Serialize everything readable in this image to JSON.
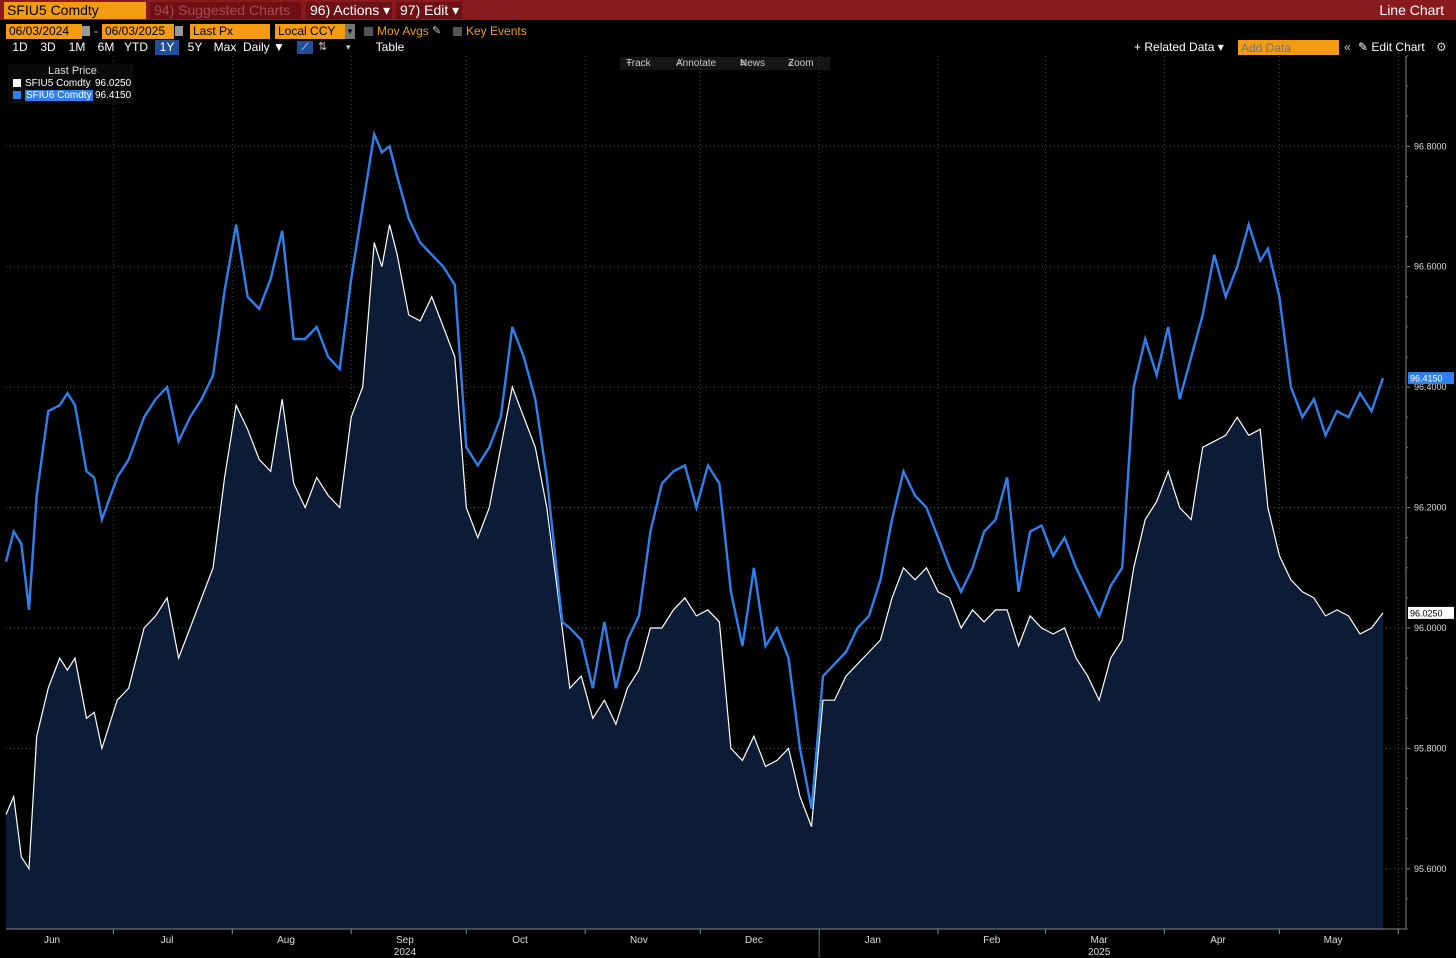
{
  "header": {
    "ticker": "SFIU5 Comdty",
    "suggested": "94) Suggested Charts",
    "actions": "96) Actions",
    "edit": "97) Edit",
    "title": "Line Chart"
  },
  "controls": {
    "start_date": "06/03/2024",
    "end_date": "06/03/2025",
    "field": "Last Px",
    "currency": "Local CCY",
    "mov_avgs": "Mov Avgs",
    "key_events": "Key Events",
    "ranges": [
      "1D",
      "3D",
      "1M",
      "6M",
      "YTD",
      "1Y",
      "5Y",
      "Max"
    ],
    "active_range": "1Y",
    "frequency": "Daily",
    "table": "Table",
    "related_data": "Related Data",
    "add_data_placeholder": "Add Data",
    "edit_chart": "Edit Chart"
  },
  "chart_tools": {
    "track": "Track",
    "annotate": "Annotate",
    "news": "News",
    "zoom": "Zoom"
  },
  "colors": {
    "series1": "#ffffff",
    "series2": "#2f80ed",
    "area": "#0c1c36",
    "accent": "#f39c12",
    "header": "#8b1a1f"
  },
  "chart_data": {
    "type": "line",
    "legend_title": "Last Price",
    "legend_position": "top-left",
    "grid": true,
    "ylim": [
      95.5,
      96.95
    ],
    "yticks": [
      "95.6000",
      "95.8000",
      "96.0000",
      "96.2000",
      "96.4000",
      "96.6000",
      "96.8000"
    ],
    "x_range": [
      "2024-06-03",
      "2025-06-03"
    ],
    "month_labels": [
      {
        "label": "Jun",
        "date": "2024-06-15"
      },
      {
        "label": "Jul",
        "date": "2024-07-15"
      },
      {
        "label": "Aug",
        "date": "2024-08-15"
      },
      {
        "label": "Sep",
        "date": "2024-09-15"
      },
      {
        "label": "Oct",
        "date": "2024-10-15"
      },
      {
        "label": "Nov",
        "date": "2024-11-15"
      },
      {
        "label": "Dec",
        "date": "2024-12-15"
      },
      {
        "label": "Jan",
        "date": "2025-01-15"
      },
      {
        "label": "Feb",
        "date": "2025-02-15"
      },
      {
        "label": "Mar",
        "date": "2025-03-15"
      },
      {
        "label": "Apr",
        "date": "2025-04-15"
      },
      {
        "label": "May",
        "date": "2025-05-15"
      }
    ],
    "year_labels": [
      {
        "label": "2024",
        "date": "2024-09-15"
      },
      {
        "label": "2025",
        "date": "2025-03-15"
      }
    ],
    "series": [
      {
        "name": "SFIU5 Comdty",
        "last": "96.0250",
        "filled": true,
        "points": [
          [
            "2024-06-03",
            95.69
          ],
          [
            "2024-06-05",
            95.72
          ],
          [
            "2024-06-07",
            95.62
          ],
          [
            "2024-06-09",
            95.6
          ],
          [
            "2024-06-11",
            95.82
          ],
          [
            "2024-06-14",
            95.9
          ],
          [
            "2024-06-17",
            95.95
          ],
          [
            "2024-06-19",
            95.93
          ],
          [
            "2024-06-21",
            95.95
          ],
          [
            "2024-06-24",
            95.85
          ],
          [
            "2024-06-26",
            95.86
          ],
          [
            "2024-06-28",
            95.8
          ],
          [
            "2024-07-02",
            95.88
          ],
          [
            "2024-07-05",
            95.9
          ],
          [
            "2024-07-09",
            96.0
          ],
          [
            "2024-07-12",
            96.02
          ],
          [
            "2024-07-15",
            96.05
          ],
          [
            "2024-07-18",
            95.95
          ],
          [
            "2024-07-21",
            96.0
          ],
          [
            "2024-07-24",
            96.05
          ],
          [
            "2024-07-27",
            96.1
          ],
          [
            "2024-07-30",
            96.25
          ],
          [
            "2024-08-02",
            96.37
          ],
          [
            "2024-08-05",
            96.33
          ],
          [
            "2024-08-08",
            96.28
          ],
          [
            "2024-08-11",
            96.26
          ],
          [
            "2024-08-14",
            96.38
          ],
          [
            "2024-08-17",
            96.24
          ],
          [
            "2024-08-20",
            96.2
          ],
          [
            "2024-08-23",
            96.25
          ],
          [
            "2024-08-26",
            96.22
          ],
          [
            "2024-08-29",
            96.2
          ],
          [
            "2024-09-01",
            96.35
          ],
          [
            "2024-09-04",
            96.4
          ],
          [
            "2024-09-07",
            96.64
          ],
          [
            "2024-09-09",
            96.6
          ],
          [
            "2024-09-11",
            96.67
          ],
          [
            "2024-09-13",
            96.62
          ],
          [
            "2024-09-16",
            96.52
          ],
          [
            "2024-09-19",
            96.51
          ],
          [
            "2024-09-22",
            96.55
          ],
          [
            "2024-09-25",
            96.5
          ],
          [
            "2024-09-28",
            96.45
          ],
          [
            "2024-10-01",
            96.2
          ],
          [
            "2024-10-04",
            96.15
          ],
          [
            "2024-10-07",
            96.2
          ],
          [
            "2024-10-10",
            96.3
          ],
          [
            "2024-10-13",
            96.4
          ],
          [
            "2024-10-16",
            96.35
          ],
          [
            "2024-10-19",
            96.3
          ],
          [
            "2024-10-22",
            96.2
          ],
          [
            "2024-10-26",
            96.0
          ],
          [
            "2024-10-28",
            95.9
          ],
          [
            "2024-10-31",
            95.92
          ],
          [
            "2024-11-03",
            95.85
          ],
          [
            "2024-11-06",
            95.88
          ],
          [
            "2024-11-09",
            95.84
          ],
          [
            "2024-11-12",
            95.9
          ],
          [
            "2024-11-15",
            95.93
          ],
          [
            "2024-11-18",
            96.0
          ],
          [
            "2024-11-21",
            96.0
          ],
          [
            "2024-11-24",
            96.03
          ],
          [
            "2024-11-27",
            96.05
          ],
          [
            "2024-11-30",
            96.02
          ],
          [
            "2024-12-03",
            96.03
          ],
          [
            "2024-12-06",
            96.01
          ],
          [
            "2024-12-09",
            95.8
          ],
          [
            "2024-12-12",
            95.78
          ],
          [
            "2024-12-15",
            95.82
          ],
          [
            "2024-12-18",
            95.77
          ],
          [
            "2024-12-21",
            95.78
          ],
          [
            "2024-12-24",
            95.8
          ],
          [
            "2024-12-27",
            95.72
          ],
          [
            "2024-12-30",
            95.67
          ],
          [
            "2025-01-02",
            95.88
          ],
          [
            "2025-01-05",
            95.88
          ],
          [
            "2025-01-08",
            95.92
          ],
          [
            "2025-01-11",
            95.94
          ],
          [
            "2025-01-14",
            95.96
          ],
          [
            "2025-01-17",
            95.98
          ],
          [
            "2025-01-20",
            96.05
          ],
          [
            "2025-01-23",
            96.1
          ],
          [
            "2025-01-26",
            96.08
          ],
          [
            "2025-01-29",
            96.1
          ],
          [
            "2025-02-01",
            96.06
          ],
          [
            "2025-02-04",
            96.05
          ],
          [
            "2025-02-07",
            96.0
          ],
          [
            "2025-02-10",
            96.03
          ],
          [
            "2025-02-13",
            96.01
          ],
          [
            "2025-02-16",
            96.03
          ],
          [
            "2025-02-19",
            96.03
          ],
          [
            "2025-02-22",
            95.97
          ],
          [
            "2025-02-25",
            96.02
          ],
          [
            "2025-02-28",
            96.0
          ],
          [
            "2025-03-03",
            95.99
          ],
          [
            "2025-03-06",
            96.0
          ],
          [
            "2025-03-09",
            95.95
          ],
          [
            "2025-03-12",
            95.92
          ],
          [
            "2025-03-15",
            95.88
          ],
          [
            "2025-03-18",
            95.95
          ],
          [
            "2025-03-21",
            95.98
          ],
          [
            "2025-03-24",
            96.1
          ],
          [
            "2025-03-27",
            96.18
          ],
          [
            "2025-03-30",
            96.21
          ],
          [
            "2025-04-02",
            96.26
          ],
          [
            "2025-04-05",
            96.2
          ],
          [
            "2025-04-08",
            96.18
          ],
          [
            "2025-04-11",
            96.3
          ],
          [
            "2025-04-14",
            96.31
          ],
          [
            "2025-04-17",
            96.32
          ],
          [
            "2025-04-20",
            96.35
          ],
          [
            "2025-04-23",
            96.32
          ],
          [
            "2025-04-26",
            96.33
          ],
          [
            "2025-04-28",
            96.2
          ],
          [
            "2025-05-01",
            96.12
          ],
          [
            "2025-05-04",
            96.08
          ],
          [
            "2025-05-07",
            96.06
          ],
          [
            "2025-05-10",
            96.05
          ],
          [
            "2025-05-13",
            96.02
          ],
          [
            "2025-05-16",
            96.03
          ],
          [
            "2025-05-19",
            96.02
          ],
          [
            "2025-05-22",
            95.99
          ],
          [
            "2025-05-25",
            96.0
          ],
          [
            "2025-05-28",
            96.025
          ]
        ]
      },
      {
        "name": "SFIU6 Comdty",
        "last": "96.4150",
        "filled": false,
        "points": [
          [
            "2024-06-03",
            96.11
          ],
          [
            "2024-06-05",
            96.16
          ],
          [
            "2024-06-07",
            96.14
          ],
          [
            "2024-06-09",
            96.03
          ],
          [
            "2024-06-11",
            96.22
          ],
          [
            "2024-06-14",
            96.36
          ],
          [
            "2024-06-17",
            96.37
          ],
          [
            "2024-06-19",
            96.39
          ],
          [
            "2024-06-21",
            96.37
          ],
          [
            "2024-06-24",
            96.26
          ],
          [
            "2024-06-26",
            96.25
          ],
          [
            "2024-06-28",
            96.18
          ],
          [
            "2024-07-02",
            96.25
          ],
          [
            "2024-07-05",
            96.28
          ],
          [
            "2024-07-09",
            96.35
          ],
          [
            "2024-07-12",
            96.38
          ],
          [
            "2024-07-15",
            96.4
          ],
          [
            "2024-07-18",
            96.31
          ],
          [
            "2024-07-21",
            96.35
          ],
          [
            "2024-07-24",
            96.38
          ],
          [
            "2024-07-27",
            96.42
          ],
          [
            "2024-07-30",
            96.56
          ],
          [
            "2024-08-02",
            96.67
          ],
          [
            "2024-08-05",
            96.55
          ],
          [
            "2024-08-08",
            96.53
          ],
          [
            "2024-08-11",
            96.58
          ],
          [
            "2024-08-14",
            96.66
          ],
          [
            "2024-08-17",
            96.48
          ],
          [
            "2024-08-20",
            96.48
          ],
          [
            "2024-08-23",
            96.5
          ],
          [
            "2024-08-26",
            96.45
          ],
          [
            "2024-08-29",
            96.43
          ],
          [
            "2024-09-01",
            96.58
          ],
          [
            "2024-09-04",
            96.7
          ],
          [
            "2024-09-07",
            96.82
          ],
          [
            "2024-09-09",
            96.79
          ],
          [
            "2024-09-11",
            96.8
          ],
          [
            "2024-09-13",
            96.75
          ],
          [
            "2024-09-16",
            96.68
          ],
          [
            "2024-09-19",
            96.64
          ],
          [
            "2024-09-22",
            96.62
          ],
          [
            "2024-09-25",
            96.6
          ],
          [
            "2024-09-28",
            96.57
          ],
          [
            "2024-10-01",
            96.3
          ],
          [
            "2024-10-04",
            96.27
          ],
          [
            "2024-10-07",
            96.3
          ],
          [
            "2024-10-10",
            96.35
          ],
          [
            "2024-10-13",
            96.5
          ],
          [
            "2024-10-16",
            96.45
          ],
          [
            "2024-10-19",
            96.38
          ],
          [
            "2024-10-22",
            96.25
          ],
          [
            "2024-10-26",
            96.01
          ],
          [
            "2024-10-28",
            96.0
          ],
          [
            "2024-10-31",
            95.98
          ],
          [
            "2024-11-03",
            95.9
          ],
          [
            "2024-11-06",
            96.01
          ],
          [
            "2024-11-09",
            95.9
          ],
          [
            "2024-11-12",
            95.98
          ],
          [
            "2024-11-15",
            96.02
          ],
          [
            "2024-11-18",
            96.16
          ],
          [
            "2024-11-21",
            96.24
          ],
          [
            "2024-11-24",
            96.26
          ],
          [
            "2024-11-27",
            96.27
          ],
          [
            "2024-11-30",
            96.2
          ],
          [
            "2024-12-03",
            96.27
          ],
          [
            "2024-12-06",
            96.24
          ],
          [
            "2024-12-09",
            96.06
          ],
          [
            "2024-12-12",
            95.97
          ],
          [
            "2024-12-15",
            96.1
          ],
          [
            "2024-12-18",
            95.97
          ],
          [
            "2024-12-21",
            96.0
          ],
          [
            "2024-12-24",
            95.95
          ],
          [
            "2024-12-27",
            95.8
          ],
          [
            "2024-12-30",
            95.7
          ],
          [
            "2025-01-02",
            95.92
          ],
          [
            "2025-01-05",
            95.94
          ],
          [
            "2025-01-08",
            95.96
          ],
          [
            "2025-01-11",
            96.0
          ],
          [
            "2025-01-14",
            96.02
          ],
          [
            "2025-01-17",
            96.08
          ],
          [
            "2025-01-20",
            96.18
          ],
          [
            "2025-01-23",
            96.26
          ],
          [
            "2025-01-26",
            96.22
          ],
          [
            "2025-01-29",
            96.2
          ],
          [
            "2025-02-01",
            96.15
          ],
          [
            "2025-02-04",
            96.1
          ],
          [
            "2025-02-07",
            96.06
          ],
          [
            "2025-02-10",
            96.1
          ],
          [
            "2025-02-13",
            96.16
          ],
          [
            "2025-02-16",
            96.18
          ],
          [
            "2025-02-19",
            96.25
          ],
          [
            "2025-02-22",
            96.06
          ],
          [
            "2025-02-25",
            96.16
          ],
          [
            "2025-02-28",
            96.17
          ],
          [
            "2025-03-03",
            96.12
          ],
          [
            "2025-03-06",
            96.15
          ],
          [
            "2025-03-09",
            96.1
          ],
          [
            "2025-03-12",
            96.06
          ],
          [
            "2025-03-15",
            96.02
          ],
          [
            "2025-03-18",
            96.07
          ],
          [
            "2025-03-21",
            96.1
          ],
          [
            "2025-03-24",
            96.4
          ],
          [
            "2025-03-27",
            96.48
          ],
          [
            "2025-03-30",
            96.42
          ],
          [
            "2025-04-02",
            96.5
          ],
          [
            "2025-04-05",
            96.38
          ],
          [
            "2025-04-08",
            96.45
          ],
          [
            "2025-04-11",
            96.52
          ],
          [
            "2025-04-14",
            96.62
          ],
          [
            "2025-04-17",
            96.55
          ],
          [
            "2025-04-20",
            96.6
          ],
          [
            "2025-04-23",
            96.67
          ],
          [
            "2025-04-26",
            96.61
          ],
          [
            "2025-04-28",
            96.63
          ],
          [
            "2025-05-01",
            96.55
          ],
          [
            "2025-05-04",
            96.4
          ],
          [
            "2025-05-07",
            96.35
          ],
          [
            "2025-05-10",
            96.38
          ],
          [
            "2025-05-13",
            96.32
          ],
          [
            "2025-05-16",
            96.36
          ],
          [
            "2025-05-19",
            96.35
          ],
          [
            "2025-05-22",
            96.39
          ],
          [
            "2025-05-25",
            96.36
          ],
          [
            "2025-05-28",
            96.415
          ]
        ]
      }
    ]
  }
}
